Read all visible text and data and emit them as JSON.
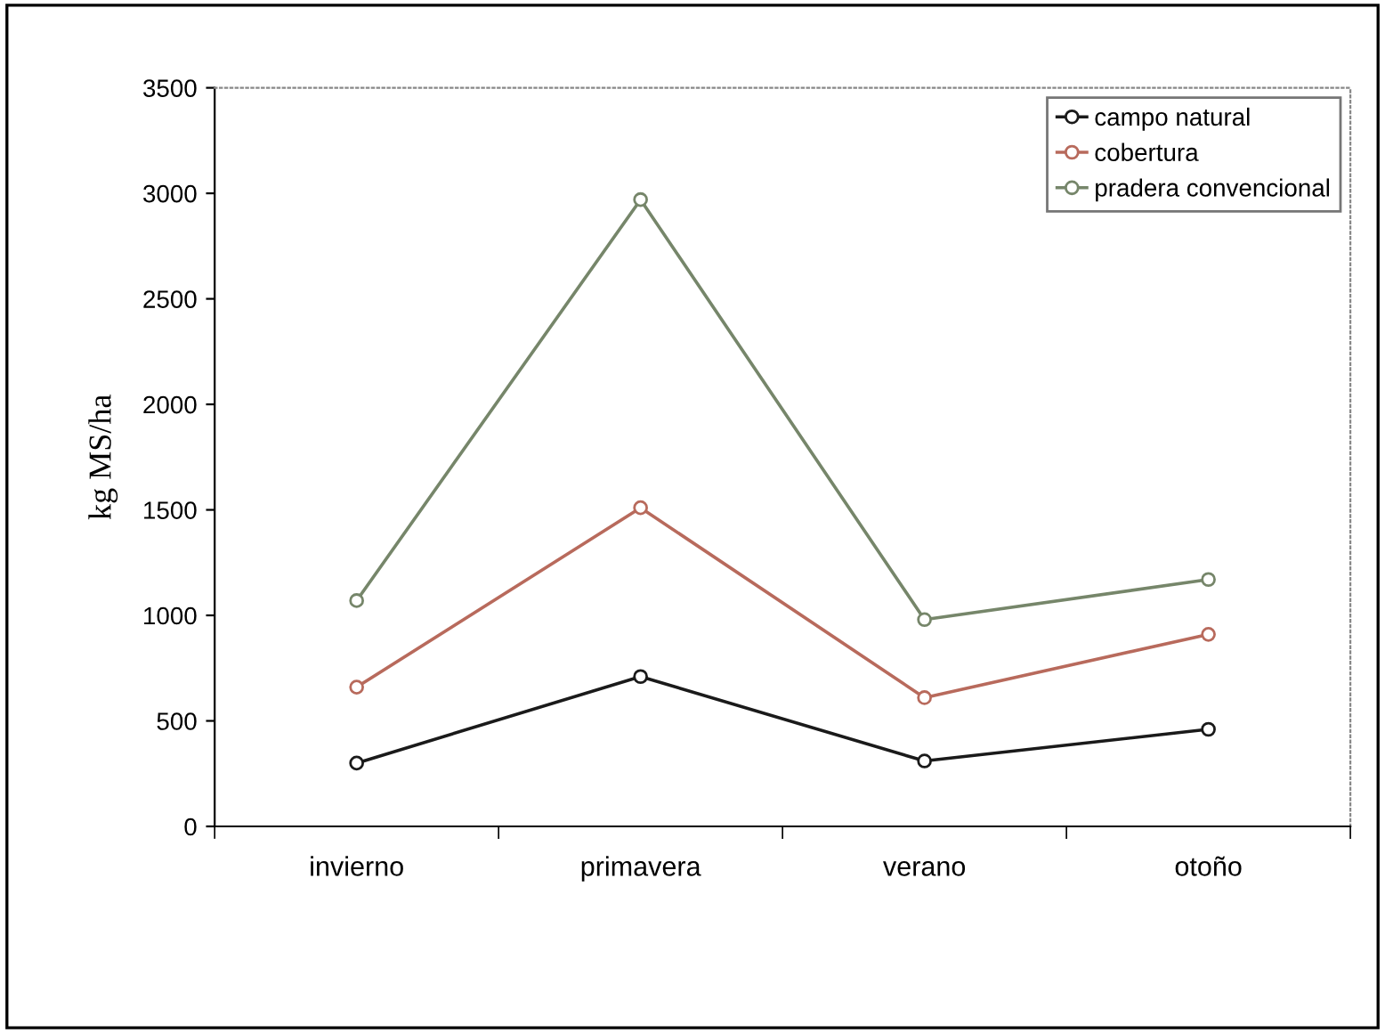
{
  "chart_data": {
    "type": "line",
    "ylabel": "kg MS/ha",
    "categories": [
      "invierno",
      "primavera",
      "verano",
      "otoño"
    ],
    "series": [
      {
        "name": "campo natural",
        "color": "#1a1a1a",
        "values": [
          300,
          710,
          310,
          460
        ]
      },
      {
        "name": "cobertura",
        "color": "#b86a5c",
        "values": [
          660,
          1510,
          610,
          910
        ]
      },
      {
        "name": "pradera convencional",
        "color": "#76866a",
        "values": [
          1070,
          2970,
          980,
          1170
        ]
      }
    ],
    "ylim": [
      0,
      3500
    ],
    "yticks": [
      0,
      500,
      1000,
      1500,
      2000,
      2500,
      3000,
      3500
    ],
    "grid": false,
    "legend": "top right",
    "marker": "circle",
    "line_style": "solid"
  }
}
